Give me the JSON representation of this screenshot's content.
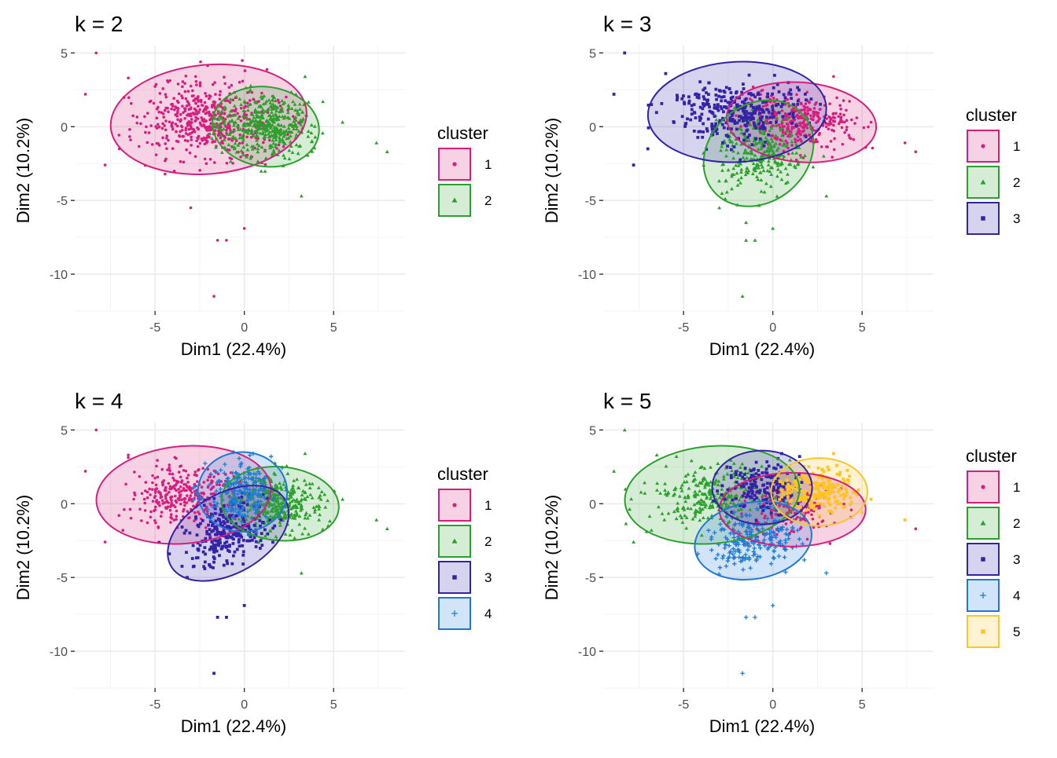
{
  "colors": {
    "1": "#d61f7d",
    "2": "#2ca02c",
    "3": "#3223a8",
    "4": "#1f78d6",
    "5": "#ffc425"
  },
  "chart_data": [
    {
      "type": "scatter",
      "title": "k = 2",
      "xlabel": "Dim1 (22.4%)",
      "ylabel": "Dim2 (10.2%)",
      "xlim": [
        -9.5,
        9
      ],
      "ylim": [
        -12.5,
        5.5
      ],
      "xticks": [
        -5,
        0,
        5
      ],
      "yticks": [
        5,
        0,
        -5,
        -10
      ],
      "grid": true,
      "legend": {
        "title": "cluster",
        "position": "right",
        "entries": [
          "1",
          "2"
        ]
      },
      "clusters": [
        {
          "id": "1",
          "symbol": "circle",
          "center": [
            -2.0,
            0.5
          ],
          "ellipse": {
            "rx": 5.5,
            "ry": 3.7,
            "angle_deg": -5
          },
          "n": 520,
          "spread": [
            1.9,
            1.3
          ],
          "outliers": [
            [
              -8.3,
              5.0
            ],
            [
              -8.9,
              2.2
            ],
            [
              -7.8,
              -2.6
            ],
            [
              -6.5,
              3.3
            ],
            [
              -1.5,
              -7.7
            ],
            [
              -1.0,
              -7.7
            ],
            [
              0.0,
              -6.9
            ],
            [
              -1.7,
              -11.5
            ],
            [
              -3.0,
              -5.5
            ],
            [
              -7.0,
              -1.5
            ]
          ]
        },
        {
          "id": "2",
          "symbol": "triangle",
          "center": [
            1.2,
            0.0
          ],
          "ellipse": {
            "rx": 3.0,
            "ry": 2.7,
            "angle_deg": 8
          },
          "n": 420,
          "spread": [
            1.3,
            1.1
          ],
          "outliers": [
            [
              7.4,
              -1.1
            ],
            [
              8.0,
              -1.7
            ],
            [
              5.5,
              0.3
            ],
            [
              3.2,
              -4.7
            ],
            [
              3.4,
              3.4
            ],
            [
              4.4,
              1.7
            ]
          ]
        }
      ]
    },
    {
      "type": "scatter",
      "title": "k = 3",
      "xlabel": "Dim1 (22.4%)",
      "ylabel": "Dim2 (10.2%)",
      "xlim": [
        -9.5,
        9
      ],
      "ylim": [
        -12.5,
        5.5
      ],
      "xticks": [
        -5,
        0,
        5
      ],
      "yticks": [
        5,
        0,
        -5,
        -10
      ],
      "grid": true,
      "legend": {
        "title": "cluster",
        "position": "right",
        "entries": [
          "1",
          "2",
          "3"
        ]
      },
      "clusters": [
        {
          "id": "1",
          "symbol": "circle",
          "center": [
            1.6,
            0.3
          ],
          "ellipse": {
            "rx": 4.2,
            "ry": 2.7,
            "angle_deg": 5
          },
          "n": 340,
          "spread": [
            1.5,
            0.9
          ],
          "outliers": [
            [
              7.4,
              -1.1
            ],
            [
              8.0,
              -1.7
            ],
            [
              5.5,
              0.3
            ],
            [
              4.7,
              0.6
            ],
            [
              3.4,
              3.4
            ]
          ]
        },
        {
          "id": "2",
          "symbol": "triangle",
          "center": [
            -0.8,
            -1.8
          ],
          "ellipse": {
            "rx": 3.3,
            "ry": 3.3,
            "angle_deg": -40
          },
          "n": 280,
          "spread": [
            1.2,
            1.2
          ],
          "outliers": [
            [
              -1.5,
              -7.7
            ],
            [
              -1.0,
              -7.7
            ],
            [
              0.0,
              -6.9
            ],
            [
              -1.7,
              -11.5
            ],
            [
              3.0,
              -4.7
            ],
            [
              -3.0,
              -5.5
            ],
            [
              -1.5,
              -6.5
            ]
          ]
        },
        {
          "id": "3",
          "symbol": "square",
          "center": [
            -2.0,
            1.0
          ],
          "ellipse": {
            "rx": 5.0,
            "ry": 3.4,
            "angle_deg": -3
          },
          "n": 330,
          "spread": [
            1.8,
            1.0
          ],
          "outliers": [
            [
              -8.3,
              5.0
            ],
            [
              -8.9,
              2.2
            ],
            [
              -7.8,
              -2.6
            ],
            [
              -7.0,
              -1.5
            ],
            [
              -6.8,
              1.5
            ],
            [
              -6.0,
              3.6
            ]
          ]
        }
      ]
    },
    {
      "type": "scatter",
      "title": "k = 4",
      "xlabel": "Dim1 (22.4%)",
      "ylabel": "Dim2 (10.2%)",
      "xlim": [
        -9.5,
        9
      ],
      "ylim": [
        -12.5,
        5.5
      ],
      "xticks": [
        -5,
        0,
        5
      ],
      "yticks": [
        5,
        0,
        -5,
        -10
      ],
      "grid": true,
      "legend": {
        "title": "cluster",
        "position": "right",
        "entries": [
          "1",
          "2",
          "3",
          "4"
        ]
      },
      "clusters": [
        {
          "id": "1",
          "symbol": "circle",
          "center": [
            -3.4,
            0.6
          ],
          "ellipse": {
            "rx": 4.9,
            "ry": 3.3,
            "angle_deg": -5
          },
          "n": 300,
          "spread": [
            1.5,
            1.0
          ],
          "outliers": [
            [
              -8.3,
              5.0
            ],
            [
              -8.9,
              2.2
            ],
            [
              -7.8,
              -2.6
            ],
            [
              -6.8,
              -1.8
            ],
            [
              -6.5,
              3.3
            ]
          ]
        },
        {
          "id": "2",
          "symbol": "triangle",
          "center": [
            2.0,
            0.0
          ],
          "ellipse": {
            "rx": 3.3,
            "ry": 2.5,
            "angle_deg": 5
          },
          "n": 320,
          "spread": [
            1.2,
            0.9
          ],
          "outliers": [
            [
              7.4,
              -1.1
            ],
            [
              8.0,
              -1.7
            ],
            [
              5.5,
              0.3
            ],
            [
              3.2,
              -4.7
            ],
            [
              3.4,
              3.4
            ]
          ]
        },
        {
          "id": "3",
          "symbol": "square",
          "center": [
            -0.9,
            -2.0
          ],
          "ellipse": {
            "rx": 3.7,
            "ry": 2.7,
            "angle_deg": -30
          },
          "n": 260,
          "spread": [
            1.2,
            1.0
          ],
          "outliers": [
            [
              -1.5,
              -7.7
            ],
            [
              -1.0,
              -7.7
            ],
            [
              0.0,
              -6.9
            ],
            [
              -1.7,
              -11.5
            ],
            [
              -3.2,
              -5.0
            ],
            [
              -4.2,
              -3.4
            ]
          ]
        },
        {
          "id": "4",
          "symbol": "plus",
          "center": [
            -0.1,
            0.8
          ],
          "ellipse": {
            "rx": 2.5,
            "ry": 2.7,
            "angle_deg": 0
          },
          "n": 200,
          "spread": [
            0.9,
            1.0
          ],
          "outliers": [
            [
              -0.6,
              3.5
            ],
            [
              0.5,
              3.4
            ],
            [
              1.5,
              3.2
            ]
          ]
        }
      ]
    },
    {
      "type": "scatter",
      "title": "k = 5",
      "xlabel": "Dim1 (22.4%)",
      "ylabel": "Dim2 (10.2%)",
      "xlim": [
        -9.5,
        9
      ],
      "ylim": [
        -12.5,
        5.5
      ],
      "xticks": [
        -5,
        0,
        5
      ],
      "yticks": [
        5,
        0,
        -5,
        -10
      ],
      "grid": true,
      "legend": {
        "title": "cluster",
        "position": "right",
        "entries": [
          "1",
          "2",
          "3",
          "4",
          "5"
        ]
      },
      "clusters": [
        {
          "id": "1",
          "symbol": "circle",
          "center": [
            1.1,
            -0.4
          ],
          "ellipse": {
            "rx": 4.1,
            "ry": 2.5,
            "angle_deg": 0
          },
          "n": 150,
          "spread": [
            1.3,
            0.8
          ],
          "outliers": [
            [
              8.0,
              -1.7
            ],
            [
              3.2,
              -2.7
            ]
          ]
        },
        {
          "id": "2",
          "symbol": "triangle",
          "center": [
            -3.4,
            0.6
          ],
          "ellipse": {
            "rx": 4.9,
            "ry": 3.3,
            "angle_deg": -5
          },
          "n": 280,
          "spread": [
            1.6,
            1.0
          ],
          "outliers": [
            [
              -8.3,
              5.0
            ],
            [
              -8.9,
              2.2
            ],
            [
              -7.8,
              -2.6
            ],
            [
              -6.8,
              -1.8
            ],
            [
              -6.5,
              3.3
            ]
          ]
        },
        {
          "id": "3",
          "symbol": "square",
          "center": [
            -0.6,
            1.1
          ],
          "ellipse": {
            "rx": 2.8,
            "ry": 2.5,
            "angle_deg": 0
          },
          "n": 170,
          "spread": [
            1.0,
            0.9
          ],
          "outliers": [
            [
              0.5,
              3.4
            ],
            [
              1.5,
              3.2
            ]
          ]
        },
        {
          "id": "4",
          "symbol": "plus",
          "center": [
            -1.1,
            -2.5
          ],
          "ellipse": {
            "rx": 3.3,
            "ry": 2.6,
            "angle_deg": -10
          },
          "n": 220,
          "spread": [
            1.2,
            1.0
          ],
          "outliers": [
            [
              -1.5,
              -7.7
            ],
            [
              -1.0,
              -7.7
            ],
            [
              0.0,
              -6.9
            ],
            [
              -1.7,
              -11.5
            ],
            [
              3.0,
              -4.7
            ],
            [
              -4.2,
              -3.4
            ]
          ]
        },
        {
          "id": "5",
          "symbol": "square",
          "center": [
            2.6,
            0.8
          ],
          "ellipse": {
            "rx": 2.7,
            "ry": 2.3,
            "angle_deg": 0
          },
          "n": 230,
          "spread": [
            1.0,
            0.8
          ],
          "outliers": [
            [
              7.4,
              -1.1
            ],
            [
              5.5,
              0.3
            ],
            [
              4.7,
              0.6
            ],
            [
              3.4,
              3.4
            ],
            [
              5.0,
              -0.6
            ]
          ]
        }
      ]
    }
  ]
}
